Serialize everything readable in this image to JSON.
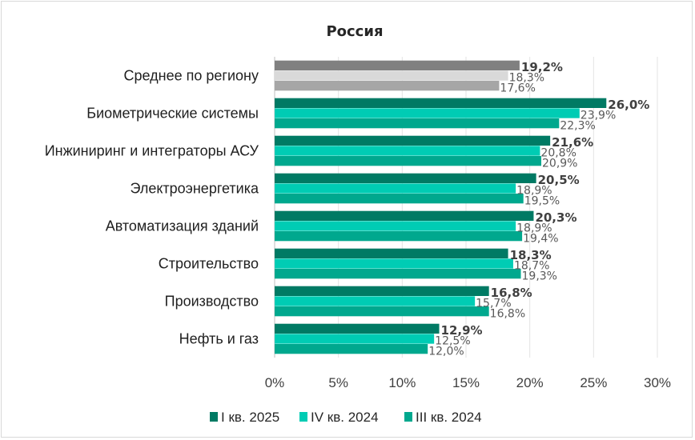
{
  "chart_data": {
    "type": "bar",
    "orientation": "horizontal",
    "title": "Россия",
    "categories": [
      "Среднее по региону",
      "Биометрические системы",
      "Инжиниринг и интеграторы АСУ",
      "Электроэнергетика",
      "Автоматизация зданий",
      "Строительство",
      "Производство",
      "Нефть и газ"
    ],
    "series": [
      {
        "name": "I кв. 2025",
        "color": "#007a64",
        "values": [
          19.2,
          26.0,
          21.6,
          20.5,
          20.3,
          18.3,
          16.8,
          12.9
        ],
        "labels": [
          "19,2%",
          "26,0%",
          "21,6%",
          "20,5%",
          "20,3%",
          "18,3%",
          "16,8%",
          "12,9%"
        ]
      },
      {
        "name": "IV кв. 2024",
        "color": "#00ccb4",
        "values": [
          18.3,
          23.9,
          20.8,
          18.9,
          18.9,
          18.7,
          15.7,
          12.5
        ],
        "labels": [
          "18,3%",
          "23,9%",
          "20,8%",
          "18,9%",
          "18,9%",
          "18,7%",
          "15,7%",
          "12,5%"
        ]
      },
      {
        "name": "III кв. 2024",
        "color": "#00a88e",
        "values": [
          17.6,
          22.3,
          20.9,
          19.5,
          19.4,
          19.3,
          16.8,
          12.0
        ],
        "labels": [
          "17,6%",
          "22,3%",
          "20,9%",
          "19,5%",
          "19,4%",
          "19,3%",
          "16,8%",
          "12,0%"
        ]
      }
    ],
    "average_row_colors": [
      "#808080",
      "#d9d9d9",
      "#a6a6a6"
    ],
    "xlim": [
      0,
      30
    ],
    "xticks": [
      0,
      5,
      10,
      15,
      20,
      25,
      30
    ],
    "xtick_labels": [
      "0%",
      "5%",
      "10%",
      "15%",
      "20%",
      "25%",
      "30%"
    ],
    "grid": true,
    "legend_position": "bottom"
  }
}
